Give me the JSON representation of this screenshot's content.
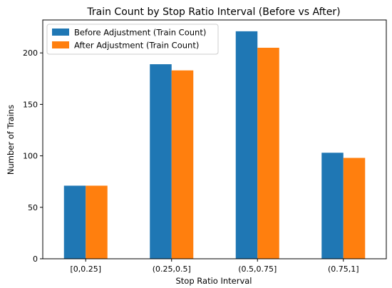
{
  "chart_data": {
    "type": "bar",
    "title": "Train Count by Stop Ratio Interval (Before vs After)",
    "xlabel": "Stop Ratio Interval",
    "ylabel": "Number of Trains",
    "categories": [
      "[0,0.25]",
      "(0.25,0.5]",
      "(0.5,0.75]",
      "(0.75,1]"
    ],
    "series": [
      {
        "name": "Before Adjustment (Train Count)",
        "color": "#1f77b4",
        "values": [
          71,
          189,
          221,
          103
        ]
      },
      {
        "name": "After Adjustment (Train Count)",
        "color": "#ff7f0e",
        "values": [
          71,
          183,
          205,
          98
        ]
      }
    ],
    "ylim": [
      0,
      232
    ],
    "yticks": [
      0,
      50,
      100,
      150,
      200
    ],
    "grid": false,
    "legend_position": "top-left"
  }
}
